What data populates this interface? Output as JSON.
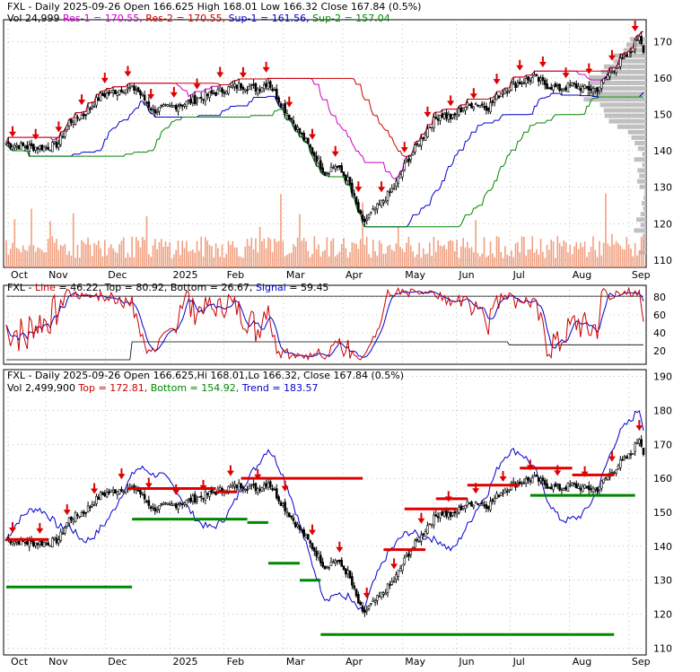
{
  "chart_data": [
    {
      "type": "candlestick",
      "panel": "price",
      "header_line1": [
        {
          "text": "FXL - Daily 2025-09-26 Open 166.625  High 168.01  Low 166.32  Close 167.84  (0.5%)",
          "color": "#000000"
        }
      ],
      "header_line2": [
        {
          "text": "Vol 24,999",
          "color": "#000000"
        },
        {
          "text": "Res-1 = 170.55,",
          "color": "#cc00cc"
        },
        {
          "text": "Res-2 = 170.55,",
          "color": "#cc0000"
        },
        {
          "text": "Sup-1 = 161.56,",
          "color": "#0000cc"
        },
        {
          "text": "Sup-2 = 157.04",
          "color": "#008800"
        }
      ],
      "y_ticks": [
        110,
        120,
        130,
        140,
        150,
        160,
        170
      ],
      "ylim": [
        108,
        176
      ],
      "x_ticks": [
        "Oct",
        "Nov",
        "Dec",
        "2025",
        "Feb",
        "Mar",
        "Apr",
        "May",
        "Jun",
        "Jul",
        "Aug",
        "Sep"
      ],
      "close_keypoints": [
        [
          0,
          142
        ],
        [
          10,
          141
        ],
        [
          20,
          141
        ],
        [
          25,
          142
        ],
        [
          30,
          148
        ],
        [
          37,
          150
        ],
        [
          45,
          155
        ],
        [
          55,
          157
        ],
        [
          62,
          157
        ],
        [
          70,
          151
        ],
        [
          78,
          152
        ],
        [
          85,
          153
        ],
        [
          95,
          155
        ],
        [
          105,
          157
        ],
        [
          112,
          158
        ],
        [
          120,
          157
        ],
        [
          125,
          159
        ],
        [
          130,
          154
        ],
        [
          140,
          145
        ],
        [
          148,
          138
        ],
        [
          152,
          134
        ],
        [
          157,
          136
        ],
        [
          163,
          132
        ],
        [
          167,
          125
        ],
        [
          170,
          120
        ],
        [
          173,
          122
        ],
        [
          178,
          125
        ],
        [
          185,
          130
        ],
        [
          192,
          138
        ],
        [
          198,
          143
        ],
        [
          202,
          147
        ],
        [
          207,
          150
        ],
        [
          213,
          149
        ],
        [
          218,
          152
        ],
        [
          224,
          153
        ],
        [
          230,
          152
        ],
        [
          236,
          156
        ],
        [
          241,
          158
        ],
        [
          246,
          159
        ],
        [
          252,
          160
        ],
        [
          258,
          158
        ],
        [
          264,
          157
        ],
        [
          270,
          158
        ],
        [
          276,
          157
        ],
        [
          282,
          157
        ],
        [
          286,
          160
        ],
        [
          292,
          164
        ],
        [
          298,
          167
        ],
        [
          302,
          172
        ],
        [
          304,
          168
        ]
      ],
      "volume_note": "volume histogram bars along the bottom of the price panel",
      "series": [
        {
          "name": "Res-1",
          "color": "#cc00cc"
        },
        {
          "name": "Res-2",
          "color": "#cc0000"
        },
        {
          "name": "Sup-1",
          "color": "#0000cc"
        },
        {
          "name": "Sup-2",
          "color": "#008800"
        }
      ]
    },
    {
      "type": "line",
      "panel": "oscillator",
      "header": [
        {
          "text": "FXL - ",
          "color": "#000000"
        },
        {
          "text": "Line",
          "color": "#cc0000"
        },
        {
          "text": " = 46.22, ",
          "color": "#000000"
        },
        {
          "text": "Top",
          "color": "#000000"
        },
        {
          "text": " = 80.92, ",
          "color": "#000000"
        },
        {
          "text": "Bottom",
          "color": "#000000"
        },
        {
          "text": " = 26.67, ",
          "color": "#000000"
        },
        {
          "text": "Signal",
          "color": "#0000cc"
        },
        {
          "text": " = 59.45",
          "color": "#000000"
        }
      ],
      "y_ticks": [
        20,
        40,
        60,
        80
      ],
      "ylim": [
        5,
        93
      ],
      "series": [
        {
          "name": "Line",
          "color": "#cc0000"
        },
        {
          "name": "Signal",
          "color": "#0000cc"
        },
        {
          "name": "Top",
          "color": "#000000"
        },
        {
          "name": "Bottom",
          "color": "#000000"
        }
      ]
    },
    {
      "type": "candlestick",
      "panel": "trend",
      "header_line1": [
        {
          "text": "FXL - Daily 2025-09-26 Open 166.625,Hi 168.01,Lo 166.32,  Close 167.84  (0.5%)",
          "color": "#000000"
        }
      ],
      "header_line2": [
        {
          "text": "Vol 2,499,900",
          "color": "#000000"
        },
        {
          "text": "Top = 172.81,",
          "color": "#cc0000"
        },
        {
          "text": "Bottom = 154.92,",
          "color": "#008800"
        },
        {
          "text": "Trend = 183.57",
          "color": "#0000cc"
        }
      ],
      "y_ticks": [
        110,
        120,
        130,
        140,
        150,
        160,
        170,
        180,
        190
      ],
      "ylim": [
        108,
        192
      ],
      "x_ticks": [
        "Oct",
        "Nov",
        "Dec",
        "2025",
        "Feb",
        "Mar",
        "Apr",
        "May",
        "Jun",
        "Jul",
        "Aug",
        "Sep"
      ],
      "series": [
        {
          "name": "Top",
          "color": "#cc0000"
        },
        {
          "name": "Bottom",
          "color": "#008800"
        },
        {
          "name": "Trend",
          "color": "#0000cc"
        }
      ]
    }
  ]
}
